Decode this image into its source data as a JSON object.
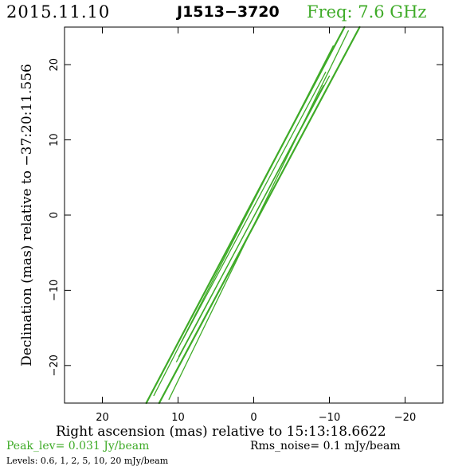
{
  "header": {
    "date": "2015.11.10",
    "source": "J1513−3720",
    "frequency": "Freq: 7.6 GHz"
  },
  "footer": {
    "peak": "Peak_lev=  0.031 Jy/beam",
    "rms": "Rms_noise=   0.1 mJy/beam",
    "levels": "Levels: 0.6,    1,    2,    5,   10,   20 mJy/beam"
  },
  "colors": {
    "contour": "#3fab28",
    "axis": "#000000"
  },
  "chart_data": {
    "type": "contour",
    "xlabel": "Right ascension (mas) relative to 15:13:18.6622",
    "ylabel": "Declination (mas) relative to −37:20:11.556",
    "xlim": [
      25,
      -25
    ],
    "ylim": [
      -25,
      25
    ],
    "xticks": [
      20,
      10,
      0,
      -10,
      -20
    ],
    "xtick_labels": [
      "20",
      "10",
      "0",
      "−10",
      "−20"
    ],
    "yticks": [
      -20,
      -10,
      0,
      10,
      20
    ],
    "ytick_labels": [
      "−20",
      "−10",
      "0",
      "10",
      "20"
    ],
    "contour_levels_mJy": [
      0.6,
      1,
      2,
      5,
      10,
      20
    ],
    "contours": [
      {
        "name": "outer-upper-edge",
        "points": [
          [
            -12,
            25
          ],
          [
            14.2,
            -25
          ]
        ]
      },
      {
        "name": "outer-lower-edge",
        "points": [
          [
            -14,
            25
          ],
          [
            12.5,
            -25
          ]
        ]
      },
      {
        "name": "band-upper-inner",
        "points": [
          [
            -10.5,
            22.5
          ],
          [
            13.2,
            -24
          ]
        ]
      },
      {
        "name": "band-lower-inner",
        "points": [
          [
            -12.5,
            24.5
          ],
          [
            11.2,
            -24.5
          ]
        ]
      },
      {
        "name": "inner-upper",
        "points": [
          [
            -9.5,
            19
          ],
          [
            9.5,
            -16.8
          ]
        ]
      },
      {
        "name": "inner-lower",
        "points": [
          [
            -10,
            18.5
          ],
          [
            9.9,
            -18.8
          ]
        ]
      },
      {
        "name": "core-ridge",
        "points": [
          [
            -9.2,
            17.2
          ],
          [
            10.2,
            -19.5
          ]
        ]
      }
    ]
  }
}
